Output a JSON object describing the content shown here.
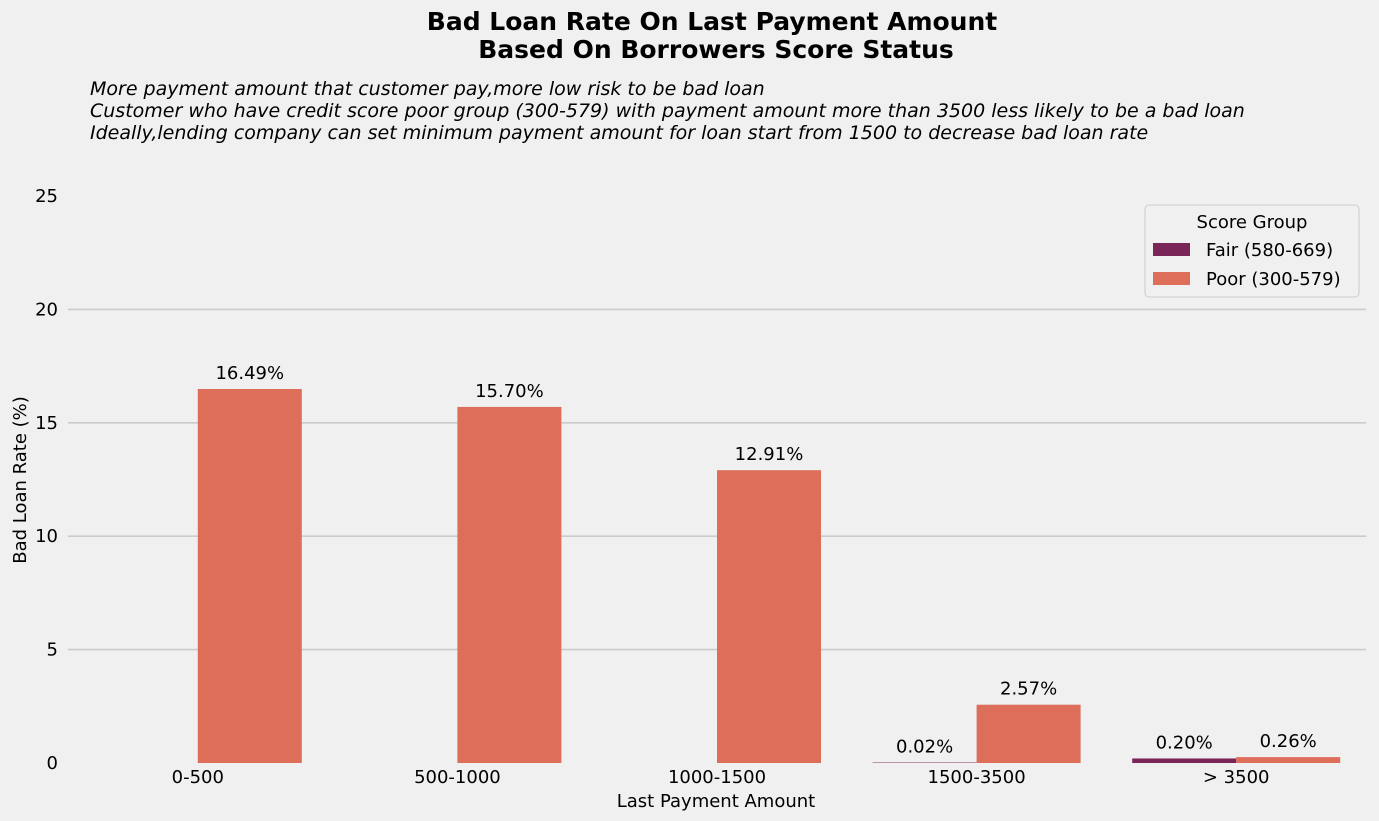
{
  "chart_data": {
    "type": "bar",
    "title_lines": [
      "Bad Loan Rate On Last Payment Amount",
      "Based On Borrowers Score Status"
    ],
    "subtitle_lines": [
      "More payment amount that customer pay,more low risk to be bad loan",
      "Customer who have credit score poor group (300-579) with payment amount more than 3500 less likely to be a bad loan",
      "Ideally,lending company can set minimum payment amount for loan start from 1500 to decrease bad loan rate"
    ],
    "xlabel": "Last Payment Amount",
    "ylabel": "Bad Loan Rate (%)",
    "ylim": [
      0,
      25
    ],
    "yticks": [
      0,
      5,
      10,
      15,
      20,
      25
    ],
    "grid": true,
    "categories": [
      "0-500",
      "500-1000",
      "1000-1500",
      "1500-3500",
      "> 3500"
    ],
    "series": [
      {
        "name": "Fair (580-669)",
        "color": "#7a2557",
        "values": [
          null,
          null,
          null,
          0.02,
          0.2
        ],
        "labels": [
          "",
          "",
          "",
          "0.02%",
          "0.20%"
        ]
      },
      {
        "name": "Poor (300-579)",
        "color": "#dd6e5a",
        "values": [
          16.49,
          15.7,
          12.91,
          2.57,
          0.26
        ],
        "labels": [
          "16.49%",
          "15.70%",
          "12.91%",
          "2.57%",
          "0.26%"
        ]
      }
    ],
    "legend": {
      "title": "Score Group",
      "placement": "top-right"
    }
  }
}
